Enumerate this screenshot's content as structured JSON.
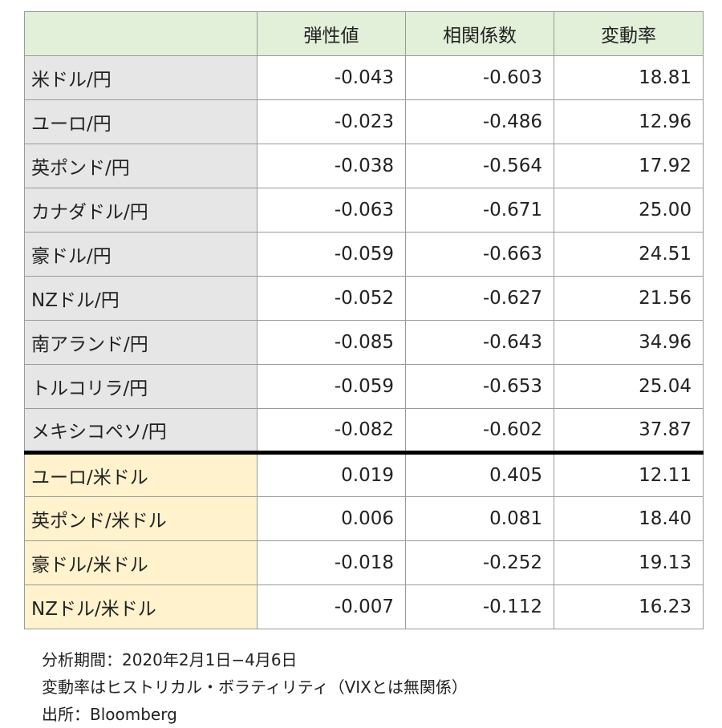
{
  "table": {
    "header": [
      "弾性値",
      "相関係数",
      "変動率"
    ],
    "rows": [
      [
        "米ドル/円",
        "-0.043",
        "-0.603",
        "18.81"
      ],
      [
        "ユーロ/円",
        "-0.023",
        "-0.486",
        "12.96"
      ],
      [
        "英ポンド/円",
        "-0.038",
        "-0.564",
        "17.92"
      ],
      [
        "カナダドル/円",
        "-0.063",
        "-0.671",
        "25.00"
      ],
      [
        "豪ドル/円",
        "-0.059",
        "-0.663",
        "24.51"
      ],
      [
        "NZドル/円",
        "-0.052",
        "-0.627",
        "21.56"
      ],
      [
        "南アランド/円",
        "-0.085",
        "-0.643",
        "34.96"
      ],
      [
        "トルコリラ/円",
        "-0.059",
        "-0.653",
        "25.04"
      ],
      [
        "メキシコペソ/円",
        "-0.082",
        "-0.602",
        "37.87"
      ],
      [
        "ユーロ/米ドル",
        "0.019",
        "0.405",
        "12.11"
      ],
      [
        "英ポンド/米ドル",
        "0.006",
        "0.081",
        "18.40"
      ],
      [
        "豪ドル/米ドル",
        "-0.018",
        "-0.252",
        "19.13"
      ],
      [
        "NZドル/米ドル",
        "-0.007",
        "-0.112",
        "16.23"
      ]
    ]
  },
  "notes": [
    "分析期間：2020年2月1日−4月6日",
    "変動率はヒストリカル・ボラティリティ（VIXとは無関係）",
    "出所：Bloomberg"
  ]
}
